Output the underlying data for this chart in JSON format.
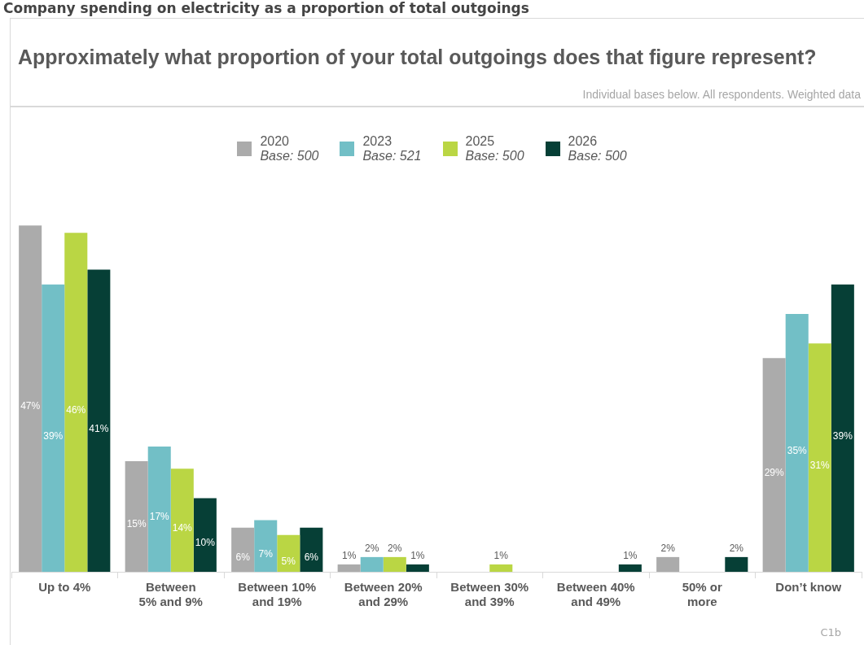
{
  "chart_data": {
    "type": "bar",
    "title": "Company spending on electricity as a proportion of total outgoings",
    "subtitle": "Approximately what proportion of your total outgoings does that figure represent?",
    "annotations": [
      "Individual bases below. All respondents. Weighted data",
      "C1b"
    ],
    "categories": [
      "Up to 4%",
      "Between\n5% and 9%",
      "Between 10%\nand 19%",
      "Between 20%\nand 29%",
      "Between 30%\nand 39%",
      "Between 40%\nand 49%",
      "50% or\nmore",
      "Don’t know"
    ],
    "series": [
      {
        "name": "2020\nBase: 500",
        "color": "#ababab",
        "values": [
          47,
          15,
          6,
          1,
          null,
          null,
          2,
          29
        ],
        "value_labels": [
          "47%",
          "15%",
          "6%",
          "1%",
          null,
          null,
          "2%",
          "29%"
        ]
      },
      {
        "name": "2023\nBase: 521",
        "color": "#72bfc6",
        "values": [
          39,
          17,
          7,
          2,
          null,
          null,
          null,
          35
        ],
        "value_labels": [
          "39%",
          "17%",
          "7%",
          "2%",
          null,
          null,
          null,
          "35%"
        ]
      },
      {
        "name": "2025\nBase: 500",
        "color": "#bad644",
        "values": [
          46,
          14,
          5,
          2,
          1,
          null,
          null,
          31
        ],
        "value_labels": [
          "46%",
          "14%",
          "5%",
          "2%",
          "1%",
          null,
          null,
          "31%"
        ]
      },
      {
        "name": "2026\nBase: 500",
        "color": "#063f36",
        "values": [
          41,
          10,
          6,
          1,
          null,
          1,
          2,
          39
        ],
        "value_labels": [
          "41%",
          "10%",
          "6%",
          "1%",
          null,
          "1%",
          "2%",
          "39%"
        ]
      }
    ],
    "legend": "top",
    "grid": false
  }
}
